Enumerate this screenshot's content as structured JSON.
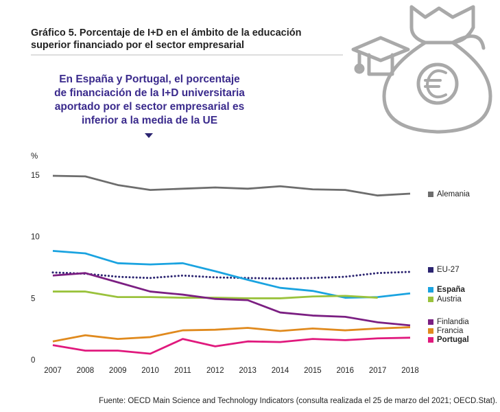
{
  "chart_data": {
    "type": "line",
    "title_lines": [
      "Gráfico 5. Porcentaje de I+D en el ámbito de la educación",
      "superior financiado por el sector empresarial"
    ],
    "annotation_lines": [
      "En España y Portugal, el porcentaje",
      "de financiación de la I+D universitaria",
      "aportado por el sector empresarial es",
      "inferior a la media de la UE"
    ],
    "y_label": "%",
    "source": "Fuente: OECD Main Science and Technology Indicators (consulta realizada el 25 de marzo del 2021; OECD.Stat).",
    "categories": [
      "2007",
      "2008",
      "2009",
      "2010",
      "2011",
      "2012",
      "2013",
      "2014",
      "2015",
      "2016",
      "2017",
      "2018"
    ],
    "ylim": [
      0,
      15
    ],
    "yticks": [
      0,
      5,
      10,
      15
    ],
    "series": [
      {
        "name": "Alemania",
        "color": "#6d6d6d",
        "values": [
          15.0,
          14.95,
          14.25,
          13.85,
          13.95,
          14.05,
          13.95,
          14.15,
          13.9,
          13.85,
          13.4,
          13.55
        ]
      },
      {
        "name": "EU-27",
        "color": "#2b2470",
        "dotted": true,
        "values": [
          7.15,
          7.05,
          6.8,
          6.7,
          6.9,
          6.75,
          6.7,
          6.65,
          6.7,
          6.8,
          7.1,
          7.2
        ]
      },
      {
        "name": "España",
        "color": "#1aa3e0",
        "bold": true,
        "values": [
          8.9,
          8.7,
          7.9,
          7.8,
          7.9,
          7.25,
          6.55,
          5.9,
          5.65,
          5.1,
          5.15,
          5.45
        ]
      },
      {
        "name": "Austria",
        "color": "#9ac23c",
        "values": [
          5.6,
          5.6,
          5.15,
          5.15,
          5.1,
          5.1,
          5.05,
          5.05,
          5.2,
          5.25,
          5.1,
          null
        ]
      },
      {
        "name": "Finlandia",
        "color": "#7b1f82",
        "values": [
          6.9,
          7.1,
          6.35,
          5.6,
          5.35,
          5.0,
          4.9,
          3.9,
          3.65,
          3.55,
          3.1,
          2.85
        ]
      },
      {
        "name": "Francia",
        "color": "#e08a1e",
        "values": [
          1.55,
          2.05,
          1.75,
          1.9,
          2.45,
          2.5,
          2.65,
          2.4,
          2.6,
          2.45,
          2.6,
          2.7
        ]
      },
      {
        "name": "Portugal",
        "color": "#e0197d",
        "bold": true,
        "values": [
          1.25,
          0.8,
          0.8,
          0.55,
          1.75,
          1.15,
          1.55,
          1.5,
          1.75,
          1.65,
          1.8,
          1.85
        ]
      }
    ]
  }
}
